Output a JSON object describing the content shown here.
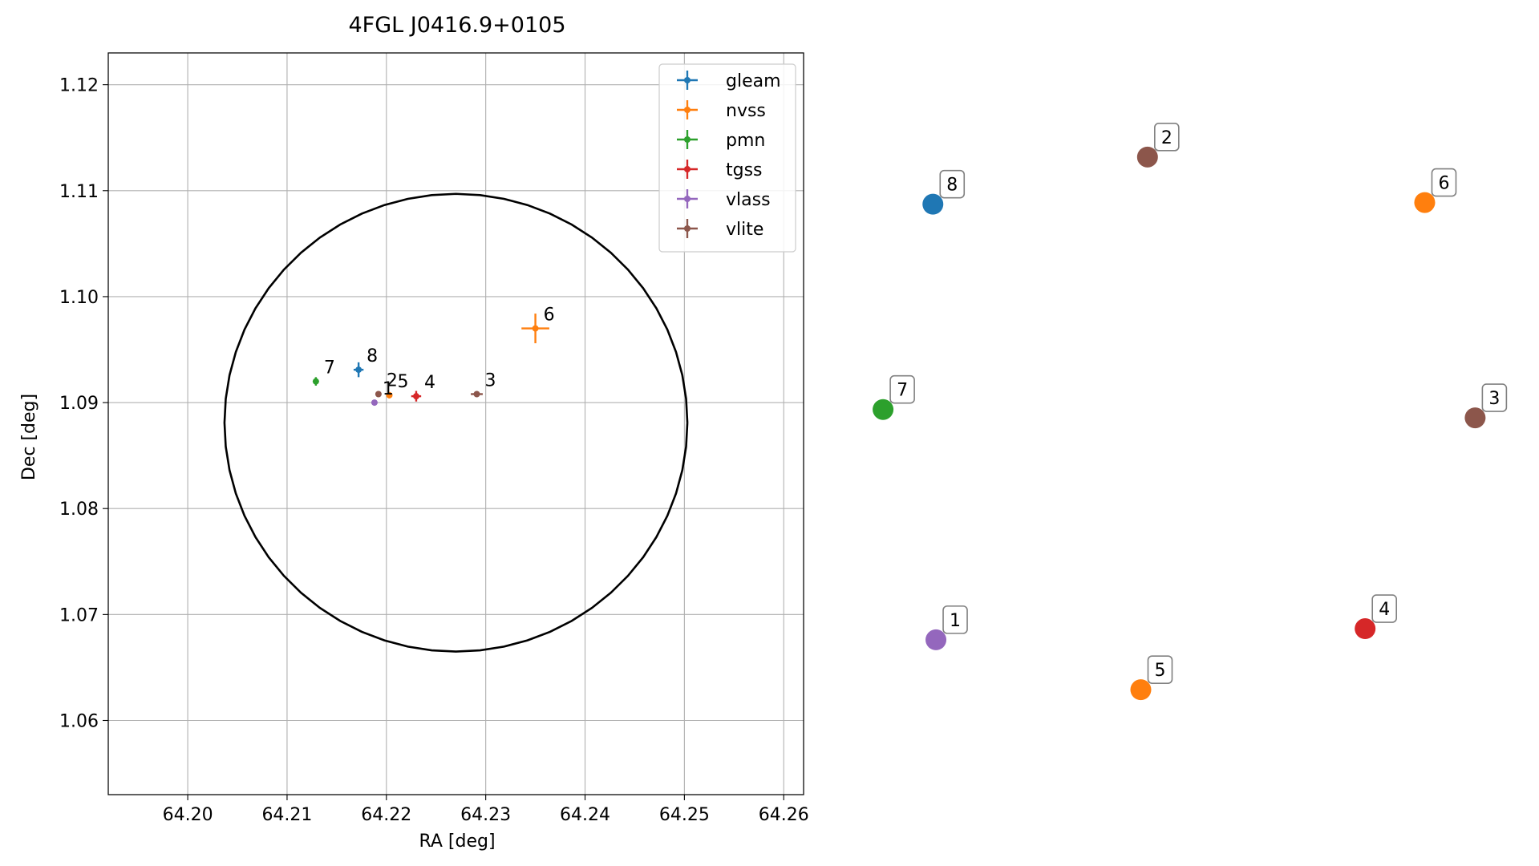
{
  "chart_data": [
    {
      "type": "scatter",
      "title": "4FGL J0416.9+0105",
      "xlabel": "RA [deg]",
      "ylabel": "Dec [deg]",
      "xlim": [
        64.192,
        64.262
      ],
      "ylim": [
        1.053,
        1.123
      ],
      "xticks": [
        64.2,
        64.21,
        64.22,
        64.23,
        64.24,
        64.25,
        64.26
      ],
      "xtick_labels": [
        "64.20",
        "64.21",
        "64.22",
        "64.23",
        "64.24",
        "64.25",
        "64.26"
      ],
      "yticks": [
        1.06,
        1.07,
        1.08,
        1.09,
        1.1,
        1.11,
        1.12
      ],
      "ytick_labels": [
        "1.06",
        "1.07",
        "1.08",
        "1.09",
        "1.10",
        "1.11",
        "1.12"
      ],
      "grid": true,
      "legend_position": "top-right",
      "ellipse": {
        "center": [
          64.227,
          1.0881
        ],
        "radius_ra": 0.0233,
        "radius_dec": 0.0216
      },
      "series": [
        {
          "name": "gleam",
          "color": "#1f77b4",
          "points": [
            {
              "label": "8",
              "ra": 64.2172,
              "dec": 1.0931,
              "err_ra": 0.0005,
              "err_dec": 0.0007
            }
          ]
        },
        {
          "name": "nvss",
          "color": "#ff7f0e",
          "points": [
            {
              "label": "5",
              "ra": 64.2203,
              "dec": 1.0907,
              "err_ra": 0.0002,
              "err_dec": 0.0003
            },
            {
              "label": "6",
              "ra": 64.235,
              "dec": 1.097,
              "err_ra": 0.0014,
              "err_dec": 0.0014
            }
          ]
        },
        {
          "name": "pmn",
          "color": "#2ca02c",
          "points": [
            {
              "label": "7",
              "ra": 64.2129,
              "dec": 1.092,
              "err_ra": 0.0002,
              "err_dec": 0.0004
            }
          ]
        },
        {
          "name": "tgss",
          "color": "#d62728",
          "points": [
            {
              "label": "4",
              "ra": 64.223,
              "dec": 1.0906,
              "err_ra": 0.0005,
              "err_dec": 0.0005
            }
          ]
        },
        {
          "name": "vlass",
          "color": "#9467bd",
          "points": [
            {
              "label": "1",
              "ra": 64.2188,
              "dec": 1.09,
              "err_ra": 0.0001,
              "err_dec": 0.0001
            }
          ]
        },
        {
          "name": "vlite",
          "color": "#8c564b",
          "points": [
            {
              "label": "2",
              "ra": 64.2192,
              "dec": 1.0908,
              "err_ra": 0.0002,
              "err_dec": 0.0002
            },
            {
              "label": "3",
              "ra": 64.2291,
              "dec": 1.0908,
              "err_ra": 0.0006,
              "err_dec": 0.0002
            }
          ]
        }
      ]
    },
    {
      "type": "scatter",
      "axes_visible": false,
      "nodes": [
        {
          "label": "1",
          "x": 0.099,
          "y": 0.11,
          "color": "#9467bd"
        },
        {
          "label": "2",
          "x": 0.447,
          "y": 0.98,
          "color": "#8c564b"
        },
        {
          "label": "3",
          "x": 0.986,
          "y": 0.51,
          "color": "#8c564b"
        },
        {
          "label": "4",
          "x": 0.805,
          "y": 0.13,
          "color": "#d62728"
        },
        {
          "label": "5",
          "x": 0.436,
          "y": 0.02,
          "color": "#ff7f0e"
        },
        {
          "label": "6",
          "x": 0.903,
          "y": 0.898,
          "color": "#ff7f0e"
        },
        {
          "label": "7",
          "x": 0.012,
          "y": 0.525,
          "color": "#2ca02c"
        },
        {
          "label": "8",
          "x": 0.094,
          "y": 0.895,
          "color": "#1f77b4"
        }
      ]
    }
  ]
}
